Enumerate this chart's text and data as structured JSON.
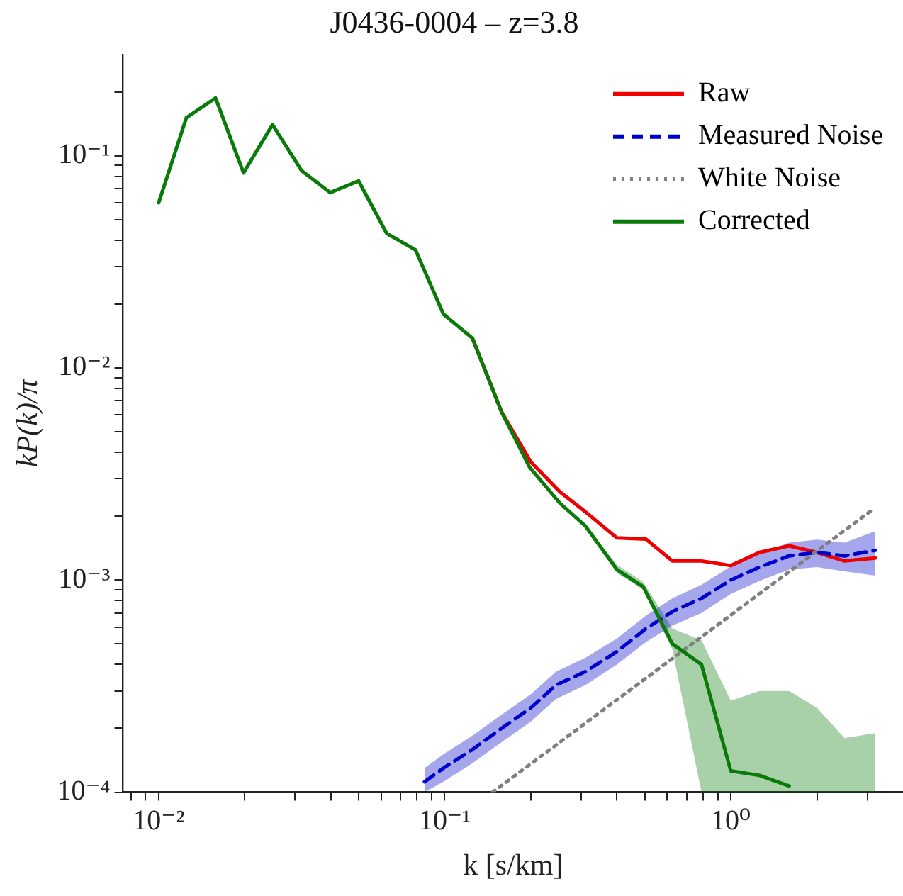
{
  "chart_data": {
    "type": "line",
    "title": "J0436-0004 – z=3.8",
    "xlabel": "k [s/km]",
    "ylabel": "kP(k)/π",
    "log": "xy",
    "legend": "top right",
    "xlim": [
      0.0075,
      4
    ],
    "ylim": [
      0.0001,
      0.3
    ],
    "xticks": [
      {
        "value": 0.008,
        "label": null
      },
      {
        "value": 0.009,
        "label": null
      },
      {
        "value": 0.01,
        "label": "10⁻²"
      },
      {
        "value": 0.02,
        "label": null
      },
      {
        "value": 0.03,
        "label": null
      },
      {
        "value": 0.04,
        "label": null
      },
      {
        "value": 0.05,
        "label": null
      },
      {
        "value": 0.06,
        "label": null
      },
      {
        "value": 0.07,
        "label": null
      },
      {
        "value": 0.08,
        "label": null
      },
      {
        "value": 0.09,
        "label": null
      },
      {
        "value": 0.1,
        "label": "10⁻¹"
      },
      {
        "value": 0.2,
        "label": null
      },
      {
        "value": 0.3,
        "label": null
      },
      {
        "value": 0.4,
        "label": null
      },
      {
        "value": 0.5,
        "label": null
      },
      {
        "value": 0.6,
        "label": null
      },
      {
        "value": 0.7,
        "label": null
      },
      {
        "value": 0.8,
        "label": null
      },
      {
        "value": 0.9,
        "label": null
      },
      {
        "value": 1,
        "label": "10⁰"
      },
      {
        "value": 2,
        "label": null
      },
      {
        "value": 3,
        "label": null
      }
    ],
    "yticks": [
      {
        "value": 0.0001,
        "label": "10⁻⁴"
      },
      {
        "value": 0.0002,
        "label": null
      },
      {
        "value": 0.0003,
        "label": null
      },
      {
        "value": 0.0004,
        "label": null
      },
      {
        "value": 0.0005,
        "label": null
      },
      {
        "value": 0.0006,
        "label": null
      },
      {
        "value": 0.0007,
        "label": null
      },
      {
        "value": 0.0008,
        "label": null
      },
      {
        "value": 0.0009,
        "label": null
      },
      {
        "value": 0.001,
        "label": "10⁻³"
      },
      {
        "value": 0.002,
        "label": null
      },
      {
        "value": 0.003,
        "label": null
      },
      {
        "value": 0.004,
        "label": null
      },
      {
        "value": 0.005,
        "label": null
      },
      {
        "value": 0.006,
        "label": null
      },
      {
        "value": 0.007,
        "label": null
      },
      {
        "value": 0.008,
        "label": null
      },
      {
        "value": 0.009,
        "label": null
      },
      {
        "value": 0.01,
        "label": "10⁻²"
      },
      {
        "value": 0.02,
        "label": null
      },
      {
        "value": 0.03,
        "label": null
      },
      {
        "value": 0.04,
        "label": null
      },
      {
        "value": 0.05,
        "label": null
      },
      {
        "value": 0.06,
        "label": null
      },
      {
        "value": 0.07,
        "label": null
      },
      {
        "value": 0.08,
        "label": null
      },
      {
        "value": 0.09,
        "label": null
      },
      {
        "value": 0.1,
        "label": "10⁻¹"
      },
      {
        "value": 0.2,
        "label": null
      }
    ],
    "series": [
      {
        "name": "Raw",
        "color": "#ee0000",
        "line_style": "solid",
        "x": [
          0.125,
          0.158,
          0.2,
          0.253,
          0.31,
          0.4,
          0.505,
          0.625,
          0.79,
          1.0,
          1.26,
          1.6,
          2.0,
          2.5,
          3.2
        ],
        "values": [
          0.0138,
          0.0062,
          0.0036,
          0.0026,
          0.0021,
          0.00158,
          0.00156,
          0.00123,
          0.00123,
          0.00117,
          0.00135,
          0.00145,
          0.00135,
          0.00123,
          0.00127
        ]
      },
      {
        "name": "Measured Noise",
        "color": "#0000cc",
        "line_style": "dashed",
        "x": [
          0.085,
          0.099,
          0.125,
          0.158,
          0.2,
          0.245,
          0.31,
          0.4,
          0.505,
          0.625,
          0.79,
          1.0,
          1.26,
          1.6,
          2.0,
          2.5,
          3.2
        ],
        "values": [
          0.000112,
          0.00013,
          0.000159,
          0.0002,
          0.00025,
          0.00032,
          0.00037,
          0.00046,
          0.00059,
          0.00071,
          0.00082,
          0.001,
          0.00115,
          0.0013,
          0.00135,
          0.0013,
          0.00138
        ],
        "lower": [
          0.0001,
          0.000112,
          0.000137,
          0.000172,
          0.000215,
          0.000275,
          0.00032,
          0.0004,
          0.00051,
          0.00061,
          0.0007,
          0.00086,
          0.00099,
          0.00112,
          0.00115,
          0.0011,
          0.00105
        ],
        "upper": [
          0.00013,
          0.000151,
          0.000185,
          0.000232,
          0.00029,
          0.00037,
          0.00043,
          0.00053,
          0.00068,
          0.00082,
          0.00095,
          0.00116,
          0.00133,
          0.0015,
          0.00155,
          0.0015,
          0.0017
        ]
      },
      {
        "name": "White Noise",
        "color": "#808080",
        "line_style": "dotted",
        "x": [
          0.147,
          3.12
        ],
        "values": [
          0.0001,
          0.00214
        ]
      },
      {
        "name": "Corrected",
        "color": "#0a7a0a",
        "line_style": "solid",
        "x": [
          0.01,
          0.0125,
          0.0158,
          0.0198,
          0.025,
          0.0316,
          0.0398,
          0.05,
          0.0627,
          0.079,
          0.099,
          0.125,
          0.158,
          0.198,
          0.253,
          0.31,
          0.4,
          0.494,
          0.625,
          0.79,
          1.0,
          1.26,
          1.6,
          2.0,
          2.5,
          3.2
        ],
        "values": [
          0.06,
          0.151,
          0.187,
          0.083,
          0.14,
          0.085,
          0.067,
          0.076,
          0.043,
          0.036,
          0.0179,
          0.0138,
          0.0062,
          0.0034,
          0.0023,
          0.0018,
          0.00112,
          0.00093,
          0.0005,
          0.0004,
          0.000126,
          0.00012,
          0.000107,
          null,
          null,
          null
        ],
        "lower": [
          null,
          null,
          null,
          null,
          null,
          null,
          null,
          null,
          null,
          null,
          null,
          null,
          null,
          null,
          null,
          0.0018,
          0.00108,
          0.0009,
          0.00047,
          0.0001,
          0.0001,
          0.0001,
          0.0001,
          0.0001,
          0.0001,
          0.0001
        ],
        "upper": [
          null,
          null,
          null,
          null,
          null,
          null,
          null,
          null,
          null,
          null,
          null,
          null,
          null,
          null,
          null,
          0.0018,
          0.00118,
          0.00098,
          0.00059,
          0.00052,
          0.00027,
          0.0003,
          0.0003,
          0.00025,
          0.00018,
          0.00019
        ]
      }
    ]
  }
}
